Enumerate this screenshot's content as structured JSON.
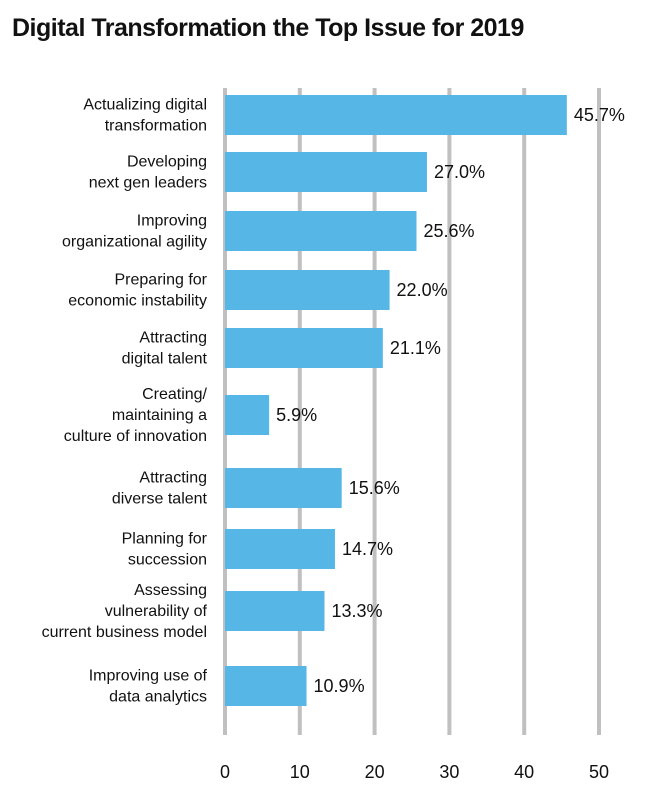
{
  "chart_data": {
    "type": "bar",
    "orientation": "horizontal",
    "title": "Digital Transformation the Top Issue for 2019",
    "categories": [
      "Actualizing digital\ntransformation",
      "Developing\nnext gen leaders",
      "Improving\norganizational agility",
      "Preparing for\neconomic instability",
      "Attracting\ndigital talent",
      "Creating/\nmaintaining a\nculture of innovation",
      "Attracting\ndiverse talent",
      "Planning for\nsuccession",
      "Assessing\nvulnerability of\ncurrent business model",
      "Improving use of\ndata analytics"
    ],
    "values": [
      45.7,
      27.0,
      25.6,
      22.0,
      21.1,
      5.9,
      15.6,
      14.7,
      13.3,
      10.9
    ],
    "data_labels": [
      "45.7%",
      "27.0%",
      "25.6%",
      "22.0%",
      "21.1%",
      "5.9%",
      "15.6%",
      "14.7%",
      "13.3%",
      "10.9%"
    ],
    "xlim": [
      0,
      50
    ],
    "xticks": [
      "0",
      "10",
      "20",
      "30",
      "40",
      "50"
    ],
    "grid": "vertical",
    "colors": {
      "bar": "#56b7e6",
      "grid": "#c0c0c0",
      "text": "#111111"
    }
  }
}
